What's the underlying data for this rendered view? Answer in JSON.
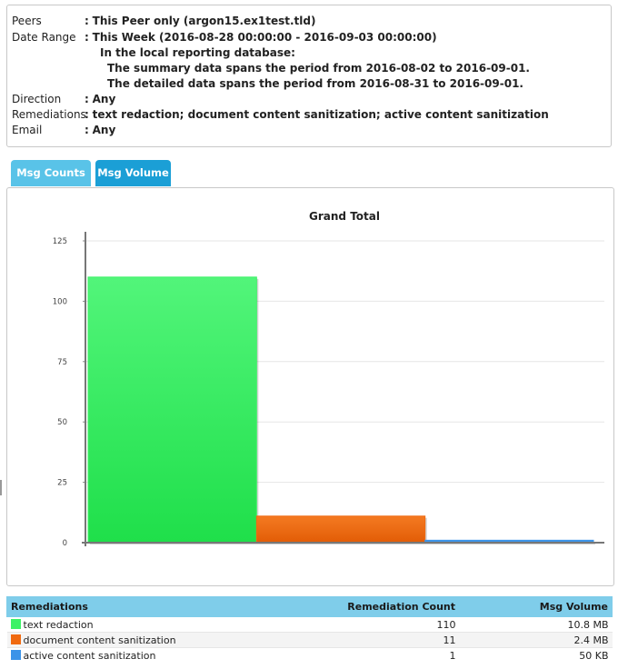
{
  "filters": {
    "peers_label": "Peers",
    "peers_value": "This Peer only (argon15.ex1test.tld)",
    "date_label": "Date Range",
    "date_value": "This Week (2016-08-28 00:00:00 - 2016-09-03 00:00:00)",
    "note_heading": "In the local reporting database:",
    "note_summary": "The summary data spans the period from 2016-08-02 to 2016-09-01.",
    "note_detailed": "The detailed data spans the period from 2016-08-31 to 2016-09-01.",
    "direction_label": "Direction",
    "direction_value": "Any",
    "remediations_label": "Remediations",
    "remediations_value": "text redaction; document content sanitization; active content sanitization",
    "email_label": "Email",
    "email_value": "Any",
    "separator": ":"
  },
  "tabs": {
    "counts": "Msg Counts",
    "volume": "Msg Volume",
    "active": "counts"
  },
  "chart_data": {
    "type": "bar",
    "title": "Grand Total",
    "categories": [
      "text redaction",
      "document content sanitization",
      "active content sanitization"
    ],
    "values": [
      110,
      11,
      1
    ],
    "colors": [
      "#3df266",
      "#f06a10",
      "#3b93e8"
    ],
    "ylim": [
      0,
      125
    ],
    "yticks": [
      0,
      25,
      50,
      75,
      100,
      125
    ],
    "grid": true
  },
  "table": {
    "headers": [
      "Remediations",
      "Remediation Count",
      "Msg Volume"
    ],
    "rows": [
      {
        "name": "text redaction",
        "count": "110",
        "volume": "10.8 MB",
        "color": "#3df266"
      },
      {
        "name": "document content sanitization",
        "count": "11",
        "volume": "2.4 MB",
        "color": "#f06a10"
      },
      {
        "name": "active content sanitization",
        "count": "1",
        "volume": "50 KB",
        "color": "#3b93e8"
      }
    ]
  }
}
